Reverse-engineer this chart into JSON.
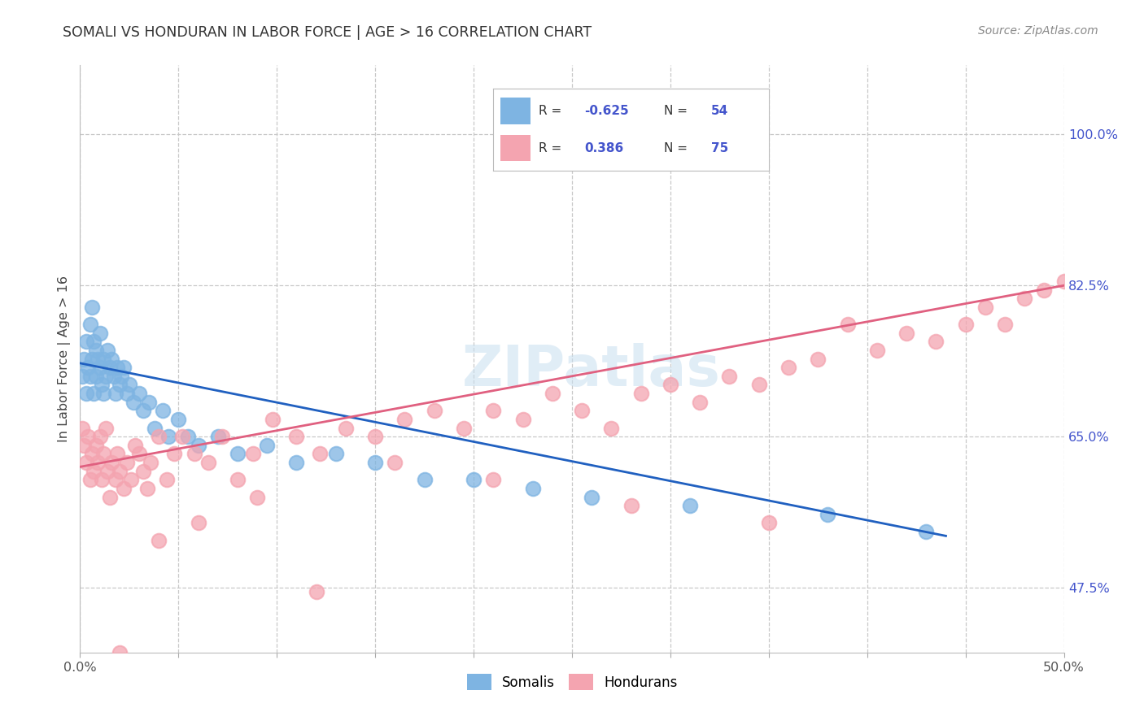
{
  "title": "SOMALI VS HONDURAN IN LABOR FORCE | AGE > 16 CORRELATION CHART",
  "source": "Source: ZipAtlas.com",
  "ylabel": "In Labor Force | Age > 16",
  "xlim": [
    0.0,
    0.5
  ],
  "ylim": [
    0.4,
    1.08
  ],
  "x_ticks": [
    0.0,
    0.05,
    0.1,
    0.15,
    0.2,
    0.25,
    0.3,
    0.35,
    0.4,
    0.45,
    0.5
  ],
  "x_tick_labels": [
    "0.0%",
    "",
    "",
    "",
    "",
    "",
    "",
    "",
    "",
    "",
    "50.0%"
  ],
  "y_tick_labels_right": [
    "47.5%",
    "65.0%",
    "82.5%",
    "100.0%"
  ],
  "y_ticks_right": [
    0.475,
    0.65,
    0.825,
    1.0
  ],
  "watermark": "ZIPatlas",
  "legend_somali_R": "-0.625",
  "legend_somali_N": "54",
  "legend_honduran_R": "0.386",
  "legend_honduran_N": "75",
  "somali_color": "#7eb4e2",
  "honduran_color": "#f4a4b0",
  "somali_line_color": "#2060c0",
  "honduran_line_color": "#e06080",
  "background_color": "#ffffff",
  "grid_color": "#c8c8c8",
  "somali_x": [
    0.001,
    0.002,
    0.003,
    0.003,
    0.004,
    0.005,
    0.005,
    0.006,
    0.006,
    0.007,
    0.007,
    0.008,
    0.008,
    0.009,
    0.01,
    0.01,
    0.011,
    0.012,
    0.012,
    0.013,
    0.014,
    0.015,
    0.016,
    0.017,
    0.018,
    0.019,
    0.02,
    0.021,
    0.022,
    0.024,
    0.025,
    0.027,
    0.03,
    0.032,
    0.035,
    0.038,
    0.042,
    0.045,
    0.05,
    0.055,
    0.06,
    0.07,
    0.08,
    0.095,
    0.11,
    0.13,
    0.15,
    0.175,
    0.2,
    0.23,
    0.26,
    0.31,
    0.38,
    0.43
  ],
  "somali_y": [
    0.72,
    0.74,
    0.76,
    0.7,
    0.73,
    0.78,
    0.72,
    0.8,
    0.74,
    0.76,
    0.7,
    0.75,
    0.72,
    0.74,
    0.77,
    0.73,
    0.71,
    0.74,
    0.7,
    0.72,
    0.75,
    0.73,
    0.74,
    0.72,
    0.7,
    0.73,
    0.71,
    0.72,
    0.73,
    0.7,
    0.71,
    0.69,
    0.7,
    0.68,
    0.69,
    0.66,
    0.68,
    0.65,
    0.67,
    0.65,
    0.64,
    0.65,
    0.63,
    0.64,
    0.62,
    0.63,
    0.62,
    0.6,
    0.6,
    0.59,
    0.58,
    0.57,
    0.56,
    0.54
  ],
  "honduran_x": [
    0.001,
    0.002,
    0.003,
    0.004,
    0.005,
    0.006,
    0.007,
    0.008,
    0.009,
    0.01,
    0.011,
    0.012,
    0.013,
    0.014,
    0.015,
    0.016,
    0.018,
    0.019,
    0.02,
    0.022,
    0.024,
    0.026,
    0.028,
    0.03,
    0.032,
    0.034,
    0.036,
    0.04,
    0.044,
    0.048,
    0.052,
    0.058,
    0.065,
    0.072,
    0.08,
    0.088,
    0.098,
    0.11,
    0.122,
    0.135,
    0.15,
    0.165,
    0.18,
    0.195,
    0.21,
    0.225,
    0.24,
    0.255,
    0.27,
    0.285,
    0.3,
    0.315,
    0.33,
    0.345,
    0.36,
    0.375,
    0.39,
    0.405,
    0.42,
    0.435,
    0.45,
    0.46,
    0.47,
    0.48,
    0.49,
    0.5,
    0.35,
    0.28,
    0.21,
    0.16,
    0.12,
    0.09,
    0.06,
    0.04,
    0.02
  ],
  "honduran_y": [
    0.66,
    0.64,
    0.62,
    0.65,
    0.6,
    0.63,
    0.61,
    0.64,
    0.62,
    0.65,
    0.6,
    0.63,
    0.66,
    0.61,
    0.58,
    0.62,
    0.6,
    0.63,
    0.61,
    0.59,
    0.62,
    0.6,
    0.64,
    0.63,
    0.61,
    0.59,
    0.62,
    0.65,
    0.6,
    0.63,
    0.65,
    0.63,
    0.62,
    0.65,
    0.6,
    0.63,
    0.67,
    0.65,
    0.63,
    0.66,
    0.65,
    0.67,
    0.68,
    0.66,
    0.68,
    0.67,
    0.7,
    0.68,
    0.66,
    0.7,
    0.71,
    0.69,
    0.72,
    0.71,
    0.73,
    0.74,
    0.78,
    0.75,
    0.77,
    0.76,
    0.78,
    0.8,
    0.78,
    0.81,
    0.82,
    0.83,
    0.55,
    0.57,
    0.6,
    0.62,
    0.47,
    0.58,
    0.55,
    0.53,
    0.4
  ]
}
